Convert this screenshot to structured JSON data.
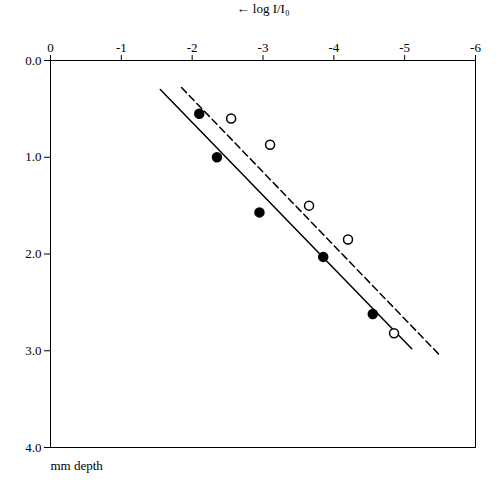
{
  "chart_data": {
    "type": "scatter",
    "xlabel": "log I/I₀",
    "ylabel": "mm depth",
    "xlim": [
      0,
      -6
    ],
    "xticks": [
      0,
      -1,
      -2,
      -3,
      -4,
      -5,
      -6
    ],
    "ylim": [
      4,
      0
    ],
    "yticks": [
      {
        "value": 0,
        "label": "0.0"
      },
      {
        "value": 1,
        "label": "1.0"
      },
      {
        "value": 2,
        "label": "2.0"
      },
      {
        "value": 3,
        "label": "3.0"
      },
      {
        "value": 4,
        "label": "4.0"
      }
    ],
    "grid": false,
    "series": [
      {
        "type": "line",
        "line_style": "solid",
        "color": "black",
        "x": [
          -1.55,
          -5.1
        ],
        "values": [
          0.3,
          2.98
        ]
      },
      {
        "type": "line",
        "line_style": "dashed",
        "color": "black",
        "x": [
          -1.85,
          -5.5
        ],
        "values": [
          0.28,
          3.05
        ]
      },
      {
        "type": "scatter",
        "marker": "circle",
        "color": "black",
        "x": [
          -2.1,
          -2.35,
          -2.95,
          -3.85,
          -4.55
        ],
        "values": [
          0.55,
          1.0,
          1.57,
          2.03,
          2.62
        ]
      },
      {
        "type": "scatter",
        "marker": "open_circle",
        "color": "black",
        "x": [
          -2.55,
          -3.1,
          -3.65,
          -4.2,
          -4.85
        ],
        "values": [
          0.6,
          0.87,
          1.5,
          1.85,
          2.82
        ]
      }
    ]
  }
}
